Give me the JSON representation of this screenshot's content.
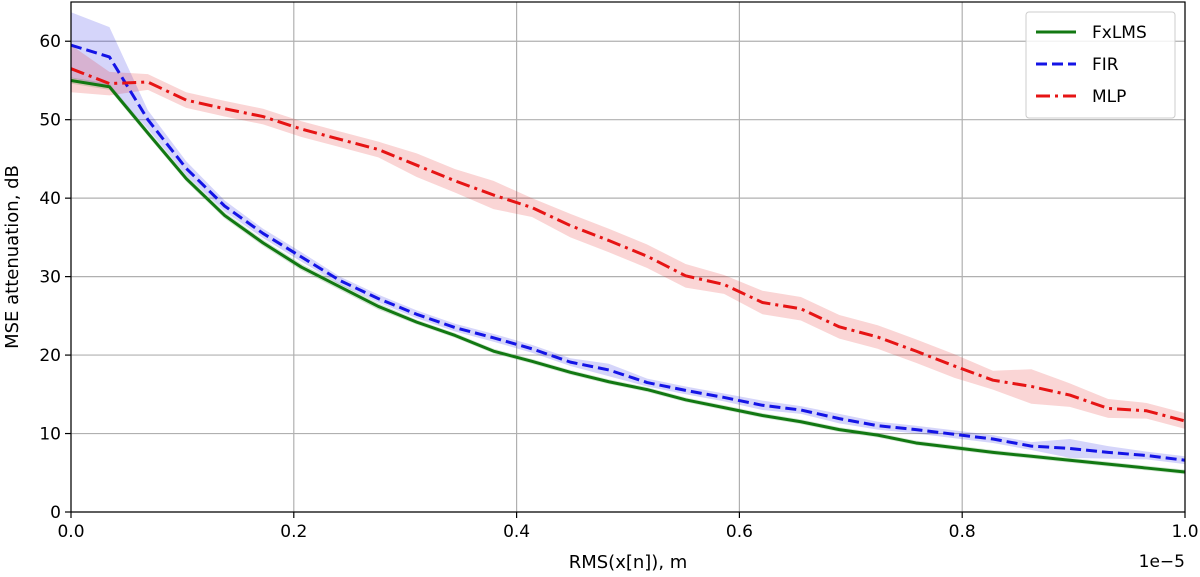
{
  "chart_data": {
    "type": "line",
    "xlabel": "RMS(x[n]), m",
    "ylabel": "MSE attenuation, dB",
    "x_offset_text": "1e−5",
    "xlim": [
      0,
      1.0
    ],
    "ylim": [
      0,
      65
    ],
    "x_ticks": [
      0.0,
      0.2,
      0.4,
      0.6,
      0.8,
      1.0
    ],
    "x_tick_labels": [
      "0.0",
      "0.2",
      "0.4",
      "0.6",
      "0.8",
      "1.0"
    ],
    "y_ticks": [
      0,
      10,
      20,
      30,
      40,
      50,
      60
    ],
    "y_tick_labels": [
      "0",
      "10",
      "20",
      "30",
      "40",
      "50",
      "60"
    ],
    "grid": true,
    "legend_position": "top-right",
    "x": [
      0.0,
      0.0345,
      0.069,
      0.1034,
      0.1379,
      0.1724,
      0.2069,
      0.2414,
      0.2759,
      0.3103,
      0.3448,
      0.3793,
      0.4138,
      0.4483,
      0.4828,
      0.5172,
      0.5517,
      0.5862,
      0.6207,
      0.6552,
      0.6897,
      0.7241,
      0.7586,
      0.7931,
      0.8276,
      0.8621,
      0.8966,
      0.931,
      0.9655,
      1.0
    ],
    "series": [
      {
        "name": "FxLMS",
        "color": "#127812",
        "dash": "solid",
        "values": [
          55.0,
          54.2,
          48.3,
          42.5,
          37.8,
          34.3,
          31.2,
          28.7,
          26.2,
          24.2,
          22.5,
          20.5,
          19.2,
          17.8,
          16.6,
          15.6,
          14.3,
          13.3,
          12.3,
          11.5,
          10.5,
          9.8,
          8.8,
          8.2,
          7.6,
          7.1,
          6.6,
          6.1,
          5.6,
          5.1
        ],
        "band": [
          0.4,
          0.4,
          0.4,
          0.4,
          0.4,
          0.4,
          0.4,
          0.4,
          0.4,
          0.3,
          0.3,
          0.3,
          0.3,
          0.3,
          0.3,
          0.3,
          0.3,
          0.3,
          0.3,
          0.3,
          0.3,
          0.3,
          0.3,
          0.3,
          0.3,
          0.3,
          0.3,
          0.3,
          0.3,
          0.3
        ]
      },
      {
        "name": "FIR",
        "color": "#1414e6",
        "dash": "dashed",
        "values": [
          59.5,
          58.0,
          50.0,
          43.8,
          39.0,
          35.5,
          32.5,
          29.5,
          27.2,
          25.2,
          23.5,
          22.2,
          20.8,
          19.1,
          18.1,
          16.5,
          15.5,
          14.6,
          13.6,
          13.0,
          11.9,
          11.0,
          10.5,
          9.9,
          9.3,
          8.4,
          8.1,
          7.6,
          7.2,
          6.6
        ],
        "band": [
          4.2,
          3.8,
          1.2,
          0.9,
          0.7,
          0.6,
          0.6,
          0.5,
          0.5,
          0.5,
          0.5,
          0.5,
          0.5,
          0.5,
          0.8,
          0.5,
          0.5,
          0.5,
          0.6,
          0.5,
          0.6,
          0.5,
          0.5,
          0.5,
          0.5,
          0.5,
          1.2,
          0.8,
          0.5,
          0.5
        ]
      },
      {
        "name": "MLP",
        "color": "#e61414",
        "dash": "dashdot",
        "values": [
          56.5,
          54.6,
          54.8,
          52.5,
          51.4,
          50.4,
          48.8,
          47.5,
          46.2,
          44.2,
          42.2,
          40.4,
          38.8,
          36.5,
          34.6,
          32.6,
          30.1,
          29.0,
          26.7,
          25.9,
          23.6,
          22.3,
          20.5,
          18.6,
          16.8,
          16.0,
          14.9,
          13.2,
          12.9,
          11.6
        ],
        "band": [
          3.0,
          1.5,
          1.0,
          1.0,
          1.0,
          1.0,
          1.0,
          1.0,
          1.0,
          1.5,
          1.5,
          1.8,
          1.2,
          1.5,
          1.5,
          1.5,
          1.5,
          1.2,
          1.5,
          1.5,
          1.5,
          1.5,
          1.5,
          1.5,
          1.2,
          2.2,
          1.5,
          1.2,
          1.0,
          1.0
        ]
      }
    ]
  }
}
